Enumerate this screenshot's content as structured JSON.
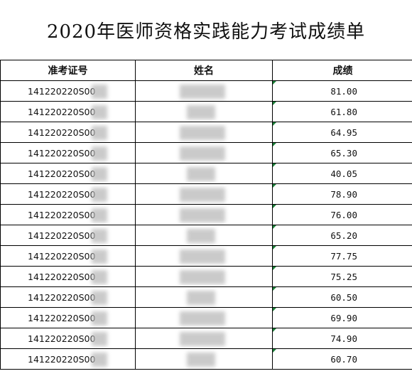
{
  "title": "2020年医师资格实践能力考试成绩单",
  "headers": {
    "id": "准考证号",
    "name": "姓名",
    "score": "成绩"
  },
  "rows": [
    {
      "id": "141220220S00",
      "score": "81.00"
    },
    {
      "id": "141220220S00",
      "score": "61.80"
    },
    {
      "id": "141220220S00",
      "score": "64.95"
    },
    {
      "id": "141220220S00",
      "score": "65.30"
    },
    {
      "id": "141220220S00",
      "score": "40.05"
    },
    {
      "id": "141220220S00",
      "score": "78.90"
    },
    {
      "id": "141220220S00",
      "score": "76.00"
    },
    {
      "id": "141220220S00",
      "score": "65.20"
    },
    {
      "id": "141220220S00",
      "score": "77.75"
    },
    {
      "id": "141220220S00",
      "score": "75.25"
    },
    {
      "id": "141220220S00",
      "score": "60.50"
    },
    {
      "id": "141220220S00",
      "score": "69.90"
    },
    {
      "id": "141220220S00",
      "score": "74.90"
    },
    {
      "id": "141220220S00",
      "score": "60.70"
    }
  ],
  "colors": {
    "gridline": "#000000",
    "comment_marker": "#1a7f37",
    "blur": "#b9b9b9"
  }
}
